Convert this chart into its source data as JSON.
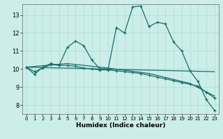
{
  "xlabel": "Humidex (Indice chaleur)",
  "background_color": "#cceee8",
  "grid_color": "#aadddd",
  "line_color": "#1a6b6b",
  "x_ticks": [
    0,
    1,
    2,
    3,
    4,
    5,
    6,
    7,
    8,
    9,
    10,
    11,
    12,
    13,
    14,
    15,
    16,
    17,
    18,
    19,
    20,
    21,
    22,
    23
  ],
  "y_ticks": [
    8,
    9,
    10,
    11,
    12,
    13
  ],
  "ylim": [
    7.5,
    13.6
  ],
  "xlim": [
    -0.5,
    23.5
  ],
  "line1_x": [
    0,
    1,
    2,
    3,
    4,
    5,
    6,
    7,
    8,
    9,
    10,
    11,
    12,
    13,
    14,
    15,
    16,
    17,
    18,
    19,
    20,
    21,
    22,
    23
  ],
  "line1_y": [
    10.1,
    9.7,
    10.1,
    10.3,
    10.2,
    11.2,
    11.55,
    11.3,
    10.5,
    10.0,
    10.0,
    12.3,
    12.0,
    13.45,
    13.5,
    12.35,
    12.6,
    12.5,
    11.5,
    11.0,
    9.9,
    9.3,
    8.3,
    7.7
  ],
  "line2_x": [
    0,
    1,
    2,
    3,
    4,
    5,
    6,
    7,
    8,
    9,
    10,
    11,
    12,
    13,
    14,
    15,
    16,
    17,
    18,
    19,
    20,
    21,
    22,
    23
  ],
  "line2_y": [
    10.1,
    9.85,
    10.05,
    10.25,
    10.2,
    10.2,
    10.15,
    10.05,
    10.0,
    9.95,
    9.95,
    9.9,
    9.85,
    9.8,
    9.75,
    9.65,
    9.55,
    9.45,
    9.35,
    9.25,
    9.15,
    9.05,
    8.7,
    8.4
  ],
  "line3_x": [
    0,
    5,
    10,
    15,
    20,
    23
  ],
  "line3_y": [
    10.1,
    10.3,
    10.05,
    9.75,
    9.2,
    8.5
  ],
  "line4_x": [
    0,
    23
  ],
  "line4_y": [
    10.1,
    9.85
  ]
}
